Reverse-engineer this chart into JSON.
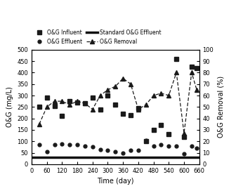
{
  "influent_x": [
    30,
    60,
    90,
    120,
    150,
    180,
    210,
    240,
    270,
    300,
    330,
    360,
    390,
    420,
    450,
    480,
    510,
    540,
    570,
    600,
    630,
    650
  ],
  "influent_y": [
    250,
    290,
    255,
    210,
    275,
    270,
    265,
    290,
    240,
    300,
    260,
    220,
    215,
    245,
    100,
    150,
    170,
    130,
    460,
    120,
    425,
    420
  ],
  "effluent_x": [
    30,
    60,
    90,
    120,
    150,
    180,
    210,
    240,
    270,
    300,
    330,
    360,
    390,
    420,
    450,
    480,
    510,
    540,
    570,
    600,
    630,
    650
  ],
  "effluent_y": [
    85,
    55,
    85,
    90,
    85,
    85,
    80,
    75,
    65,
    60,
    55,
    50,
    60,
    60,
    105,
    80,
    85,
    80,
    80,
    45,
    80,
    70
  ],
  "removal_x": [
    30,
    60,
    90,
    120,
    150,
    180,
    210,
    240,
    270,
    300,
    330,
    360,
    390,
    420,
    450,
    480,
    510,
    540,
    570,
    600,
    630,
    650
  ],
  "removal_y": [
    35,
    50,
    55,
    55,
    52,
    55,
    53,
    48,
    60,
    65,
    68,
    75,
    70,
    48,
    52,
    60,
    62,
    60,
    80,
    27,
    80,
    65
  ],
  "standard_value": 30,
  "ylim_left": [
    0,
    500
  ],
  "ylim_right": [
    0,
    100
  ],
  "xlim": [
    0,
    660
  ],
  "xticks": [
    0,
    60,
    120,
    180,
    240,
    300,
    360,
    420,
    480,
    540,
    600,
    660
  ],
  "yticks_left": [
    0,
    50,
    100,
    150,
    200,
    250,
    300,
    350,
    400,
    450,
    500
  ],
  "yticks_right": [
    0,
    10,
    20,
    30,
    40,
    50,
    60,
    70,
    80,
    90,
    100
  ],
  "xlabel": "Time (day)",
  "ylabel_left": "O&G (mg/L)",
  "ylabel_right": "O&G Removal (%)",
  "legend_labels": [
    "O&G Influent",
    "O&G Effluent",
    "Standard O&G Effluent",
    "O&G Removal"
  ],
  "color_all": "#1a1a1a",
  "color_standard": "#555555",
  "background": "#ffffff"
}
